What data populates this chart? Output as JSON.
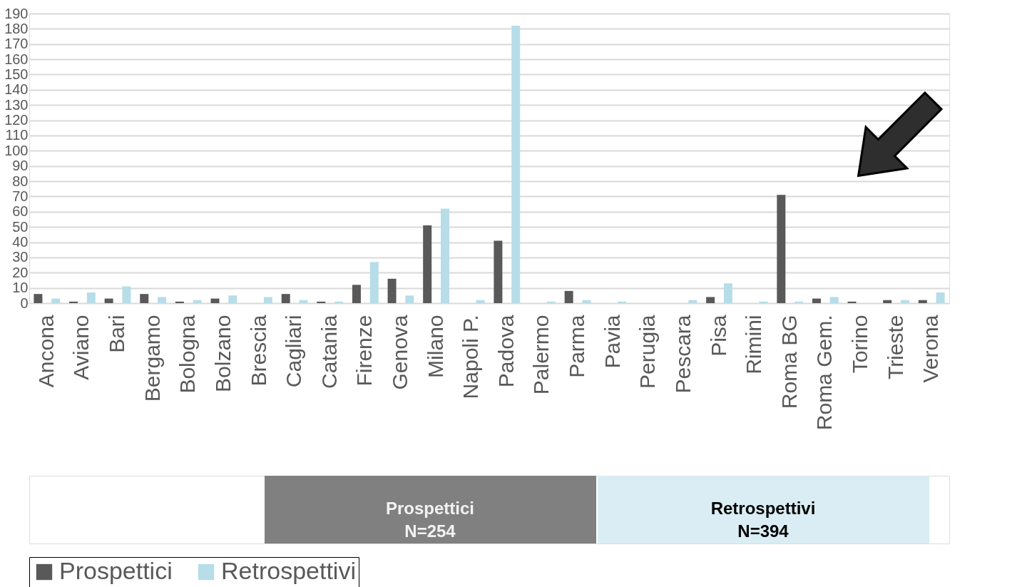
{
  "chart_data": {
    "type": "bar",
    "categories": [
      "Ancona",
      "Aviano",
      "Bari",
      "Bergamo",
      "Bologna",
      "Bolzano",
      "Brescia",
      "Cagliari",
      "Catania",
      "Firenze",
      "Genova",
      "Milano",
      "Napoli P.",
      "Padova",
      "Palermo",
      "Parma",
      "Pavia",
      "Perugia",
      "Pescara",
      "Pisa",
      "Rimini",
      "Roma BG",
      "Roma Gem.",
      "Torino",
      "Trieste",
      "Verona"
    ],
    "series": [
      {
        "name": "Prospettici",
        "color": "#595959",
        "values": [
          6,
          1,
          3,
          6,
          1,
          3,
          0,
          6,
          1,
          12,
          16,
          51,
          0,
          41,
          0,
          8,
          0,
          0,
          0,
          4,
          0,
          71,
          3,
          1,
          2,
          2
        ]
      },
      {
        "name": "Retrospettivi",
        "color": "#b7dde8",
        "values": [
          3,
          7,
          11,
          4,
          2,
          5,
          4,
          2,
          1,
          27,
          5,
          62,
          2,
          182,
          1,
          2,
          1,
          0,
          2,
          13,
          1,
          1,
          4,
          0,
          2,
          7
        ]
      }
    ],
    "ylim": [
      0,
      190
    ],
    "yticks": [
      0,
      10,
      20,
      30,
      40,
      50,
      60,
      70,
      80,
      90,
      100,
      110,
      120,
      130,
      140,
      150,
      160,
      170,
      180,
      190
    ],
    "grid": "y",
    "legend": "bottom",
    "annotations": [
      "Prospettici\nN=254",
      "Retrospettivi\nN=394"
    ]
  }
}
